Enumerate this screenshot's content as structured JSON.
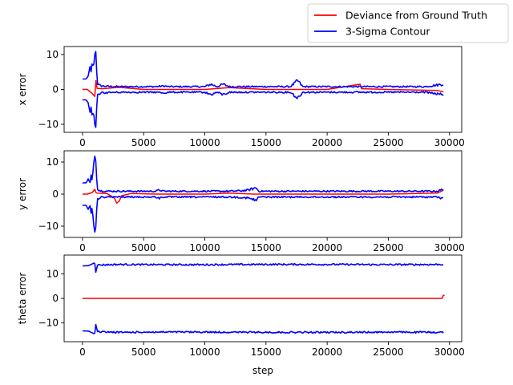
{
  "legend": {
    "placement": "top-right",
    "entries": [
      {
        "label": "Deviance from Ground Truth",
        "color": "#ff0000"
      },
      {
        "label": "3-Sigma Contour",
        "color": "#0000ff"
      }
    ]
  },
  "chart_data": [
    {
      "type": "line",
      "ylabel": "x error",
      "xlabel": "",
      "xlim": [
        -1500,
        31000
      ],
      "ylim": [
        -12.3,
        12.3
      ],
      "xticks": [
        0,
        5000,
        10000,
        15000,
        20000,
        25000,
        30000
      ],
      "yticks": [
        10,
        0,
        -10
      ],
      "series": [
        {
          "name": "Deviance from Ground Truth",
          "color": "#ff0000",
          "x": [
            0,
            400,
            800,
            1000,
            1100,
            1200,
            1600,
            3000,
            5000,
            10000,
            12000,
            15000,
            20000,
            22700,
            22800,
            25000,
            29000,
            29500
          ],
          "y": [
            0,
            0,
            -1.2,
            -2.0,
            2.5,
            0.3,
            0.2,
            0.6,
            0,
            0,
            0.5,
            0,
            0,
            1.5,
            0.2,
            0,
            -0.3,
            -0.7
          ]
        },
        {
          "name": "3-Sigma Contour (upper)",
          "color": "#0000ff",
          "x": [
            0,
            300,
            500,
            600,
            700,
            800,
            900,
            1000,
            1100,
            1200,
            1500,
            2000,
            3000,
            6000,
            6700,
            7000,
            10000,
            10500,
            11000,
            11500,
            12000,
            15000,
            17000,
            17600,
            18000,
            20000,
            25000,
            28000,
            29500
          ],
          "y": [
            3,
            3,
            4,
            7,
            5,
            8,
            6,
            10,
            11,
            1.5,
            1.0,
            0.9,
            0.8,
            0.8,
            1.0,
            0.8,
            0.8,
            1.5,
            0.8,
            1.5,
            0.8,
            0.8,
            0.8,
            2.5,
            0.8,
            0.8,
            0.8,
            0.8,
            1.5
          ]
        },
        {
          "name": "3-Sigma Contour (lower)",
          "color": "#0000ff",
          "x": [
            0,
            300,
            500,
            600,
            700,
            800,
            900,
            1000,
            1100,
            1200,
            1500,
            2000,
            3000,
            6000,
            6700,
            7000,
            10000,
            10500,
            11000,
            11500,
            12000,
            15000,
            17000,
            17600,
            18000,
            20000,
            25000,
            28000,
            29500
          ],
          "y": [
            -3,
            -3,
            -4,
            -7,
            -5,
            -8,
            -6,
            -10,
            -11,
            -1.5,
            -1.0,
            -0.9,
            -0.8,
            -0.8,
            -1.0,
            -0.8,
            -0.8,
            -1.5,
            -0.8,
            -1.5,
            -0.8,
            -0.8,
            -0.8,
            -2.5,
            -0.8,
            -0.8,
            -0.8,
            -0.8,
            -1.5
          ]
        }
      ]
    },
    {
      "type": "line",
      "ylabel": "y error",
      "xlabel": "",
      "xlim": [
        -1500,
        31000
      ],
      "ylim": [
        -13.5,
        13.5
      ],
      "xticks": [
        0,
        5000,
        10000,
        15000,
        20000,
        25000,
        30000
      ],
      "yticks": [
        10,
        0,
        -10
      ],
      "series": [
        {
          "name": "Deviance from Ground Truth",
          "color": "#ff0000",
          "x": [
            0,
            400,
            800,
            1000,
            1100,
            1200,
            2000,
            2600,
            2800,
            3000,
            3200,
            4000,
            6000,
            10000,
            12000,
            14000,
            15000,
            20000,
            25000,
            29000,
            29500
          ],
          "y": [
            0,
            0,
            0.5,
            1.5,
            0.5,
            0.3,
            0.2,
            -1.2,
            -2.8,
            -2.2,
            -0.5,
            0.2,
            0,
            0,
            0.3,
            0,
            0,
            0,
            0,
            0.3,
            1.2
          ]
        },
        {
          "name": "3-Sigma Contour (upper)",
          "color": "#0000ff",
          "x": [
            0,
            300,
            500,
            600,
            700,
            800,
            900,
            1000,
            1100,
            1200,
            1500,
            2000,
            6000,
            6300,
            6600,
            10000,
            12000,
            12800,
            13500,
            14200,
            14400,
            15000,
            20000,
            25000,
            29000,
            29500
          ],
          "y": [
            3.5,
            3.5,
            5,
            3,
            6,
            4,
            9,
            12,
            10,
            1.5,
            1.0,
            0.9,
            0.9,
            1.3,
            0.9,
            0.9,
            0.9,
            1.0,
            1.2,
            2.0,
            0.9,
            0.9,
            0.9,
            0.9,
            0.9,
            1.5
          ]
        },
        {
          "name": "3-Sigma Contour (lower)",
          "color": "#0000ff",
          "x": [
            0,
            300,
            500,
            600,
            700,
            800,
            900,
            1000,
            1100,
            1200,
            1500,
            2000,
            6000,
            6300,
            6600,
            10000,
            12000,
            12800,
            13500,
            14200,
            14400,
            15000,
            20000,
            25000,
            29000,
            29500
          ],
          "y": [
            -3.5,
            -3.5,
            -5,
            -3,
            -6,
            -4,
            -9,
            -12,
            -10,
            -1.5,
            -1.0,
            -0.9,
            -0.9,
            -1.3,
            -0.9,
            -0.9,
            -0.9,
            -1.0,
            -1.2,
            -2.0,
            -0.9,
            -0.9,
            -0.9,
            -0.9,
            -0.9,
            -1.5
          ]
        }
      ]
    },
    {
      "type": "line",
      "ylabel": "theta error",
      "xlabel": "step",
      "xlim": [
        -1500,
        31000
      ],
      "ylim": [
        -17.6,
        17.6
      ],
      "xticks": [
        0,
        5000,
        10000,
        15000,
        20000,
        25000,
        30000
      ],
      "yticks": [
        10,
        0,
        -10
      ],
      "series": [
        {
          "name": "Deviance from Ground Truth",
          "color": "#ff0000",
          "x": [
            0,
            5000,
            10000,
            15000,
            20000,
            25000,
            29400,
            29500,
            29600
          ],
          "y": [
            0,
            0,
            0,
            0,
            0,
            0,
            0,
            1.2,
            1.2
          ]
        },
        {
          "name": "3-Sigma Contour (upper)",
          "color": "#0000ff",
          "x": [
            0,
            500,
            1000,
            1100,
            1200,
            1500,
            3000,
            5000,
            10000,
            15000,
            20000,
            25000,
            29500
          ],
          "y": [
            13.2,
            13.3,
            14.5,
            10.0,
            13.5,
            13.6,
            13.8,
            13.7,
            13.7,
            13.8,
            13.8,
            13.7,
            13.8
          ]
        },
        {
          "name": "3-Sigma Contour (lower)",
          "color": "#0000ff",
          "x": [
            0,
            500,
            1000,
            1100,
            1200,
            1500,
            3000,
            5000,
            10000,
            15000,
            20000,
            25000,
            29500
          ],
          "y": [
            -13.2,
            -13.3,
            -14.5,
            -10.0,
            -13.5,
            -13.6,
            -13.8,
            -13.7,
            -13.7,
            -13.8,
            -13.8,
            -13.7,
            -13.8
          ]
        }
      ]
    }
  ]
}
